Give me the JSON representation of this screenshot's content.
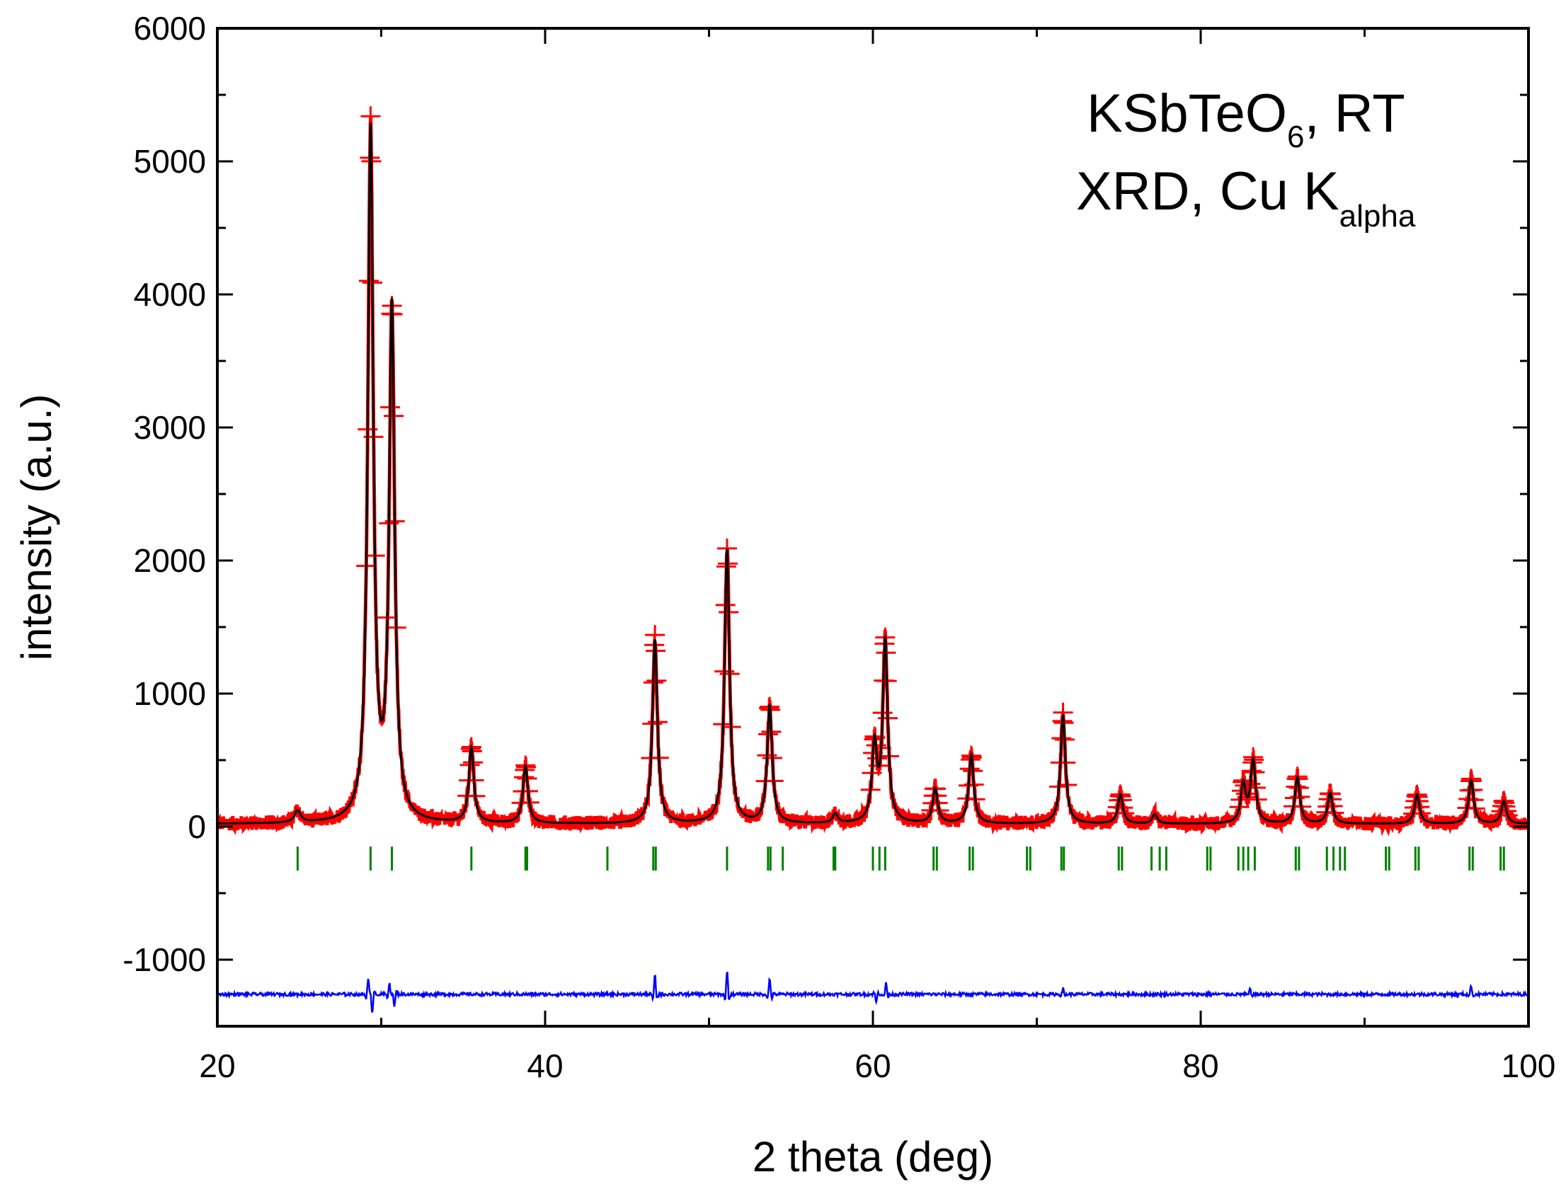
{
  "chart_data": {
    "type": "line",
    "title": "",
    "xlabel": "2 theta (deg)",
    "ylabel": "intensity (a.u.)",
    "xlim": [
      20,
      100
    ],
    "ylim": [
      -1500,
      6000
    ],
    "xticks": [
      20,
      40,
      60,
      80,
      100
    ],
    "yticks": [
      -1000,
      0,
      1000,
      2000,
      3000,
      4000,
      5000,
      6000
    ],
    "grid": false,
    "annotation": {
      "line1_main": "KSbTeO",
      "line1_sub": "6",
      "line1_tail": ", RT",
      "line2_main": "XRD, Cu K",
      "line2_sub": "alpha"
    },
    "colors": {
      "observed": "#ff0000",
      "calculated": "#000000",
      "reflections": "#008000",
      "difference": "#0000ff"
    },
    "background": 20,
    "peaks": [
      {
        "pos": 24.9,
        "height": 90,
        "width": 0.22
      },
      {
        "pos": 29.35,
        "height": 5180,
        "width": 0.2
      },
      {
        "pos": 30.65,
        "height": 3830,
        "width": 0.2
      },
      {
        "pos": 35.5,
        "height": 570,
        "width": 0.18
      },
      {
        "pos": 38.8,
        "height": 430,
        "width": 0.18
      },
      {
        "pos": 46.7,
        "height": 1380,
        "width": 0.18
      },
      {
        "pos": 51.1,
        "height": 2060,
        "width": 0.18
      },
      {
        "pos": 53.7,
        "height": 880,
        "width": 0.18
      },
      {
        "pos": 57.7,
        "height": 70,
        "width": 0.18
      },
      {
        "pos": 60.1,
        "height": 570,
        "width": 0.18
      },
      {
        "pos": 60.75,
        "height": 1360,
        "width": 0.18
      },
      {
        "pos": 63.8,
        "height": 260,
        "width": 0.18
      },
      {
        "pos": 66.0,
        "height": 520,
        "width": 0.18
      },
      {
        "pos": 71.6,
        "height": 810,
        "width": 0.18
      },
      {
        "pos": 75.1,
        "height": 220,
        "width": 0.18
      },
      {
        "pos": 77.2,
        "height": 70,
        "width": 0.18
      },
      {
        "pos": 82.6,
        "height": 290,
        "width": 0.18
      },
      {
        "pos": 83.2,
        "height": 470,
        "width": 0.18
      },
      {
        "pos": 85.9,
        "height": 350,
        "width": 0.18
      },
      {
        "pos": 87.9,
        "height": 230,
        "width": 0.18
      },
      {
        "pos": 93.2,
        "height": 220,
        "width": 0.18
      },
      {
        "pos": 96.5,
        "height": 330,
        "width": 0.18
      },
      {
        "pos": 98.5,
        "height": 170,
        "width": 0.18
      }
    ],
    "reflections": {
      "y_top": -150,
      "y_bottom": -330,
      "positions": [
        24.9,
        29.35,
        30.65,
        35.5,
        38.8,
        38.9,
        43.8,
        46.6,
        46.75,
        51.1,
        53.6,
        53.75,
        54.5,
        57.6,
        57.7,
        60.0,
        60.4,
        60.75,
        63.7,
        63.9,
        65.9,
        66.1,
        69.4,
        69.6,
        71.5,
        71.65,
        75.0,
        75.2,
        77.0,
        77.5,
        77.9,
        80.4,
        80.6,
        82.3,
        82.6,
        82.9,
        83.3,
        85.8,
        86.0,
        87.7,
        88.1,
        88.5,
        88.8,
        91.3,
        91.5,
        93.1,
        93.3,
        96.4,
        96.6,
        98.3,
        98.5
      ]
    },
    "difference": {
      "offset": -1260,
      "spikes": [
        {
          "pos": 29.2,
          "amplitude": 120
        },
        {
          "pos": 29.45,
          "amplitude": -150
        },
        {
          "pos": 30.5,
          "amplitude": 90
        },
        {
          "pos": 30.8,
          "amplitude": -100
        },
        {
          "pos": 46.7,
          "amplitude": 140
        },
        {
          "pos": 51.1,
          "amplitude": 180
        },
        {
          "pos": 53.7,
          "amplitude": 120
        },
        {
          "pos": 60.2,
          "amplitude": -60
        },
        {
          "pos": 60.8,
          "amplitude": 90
        },
        {
          "pos": 71.6,
          "amplitude": 40
        },
        {
          "pos": 83.0,
          "amplitude": 40
        },
        {
          "pos": 96.5,
          "amplitude": 70
        }
      ]
    }
  }
}
